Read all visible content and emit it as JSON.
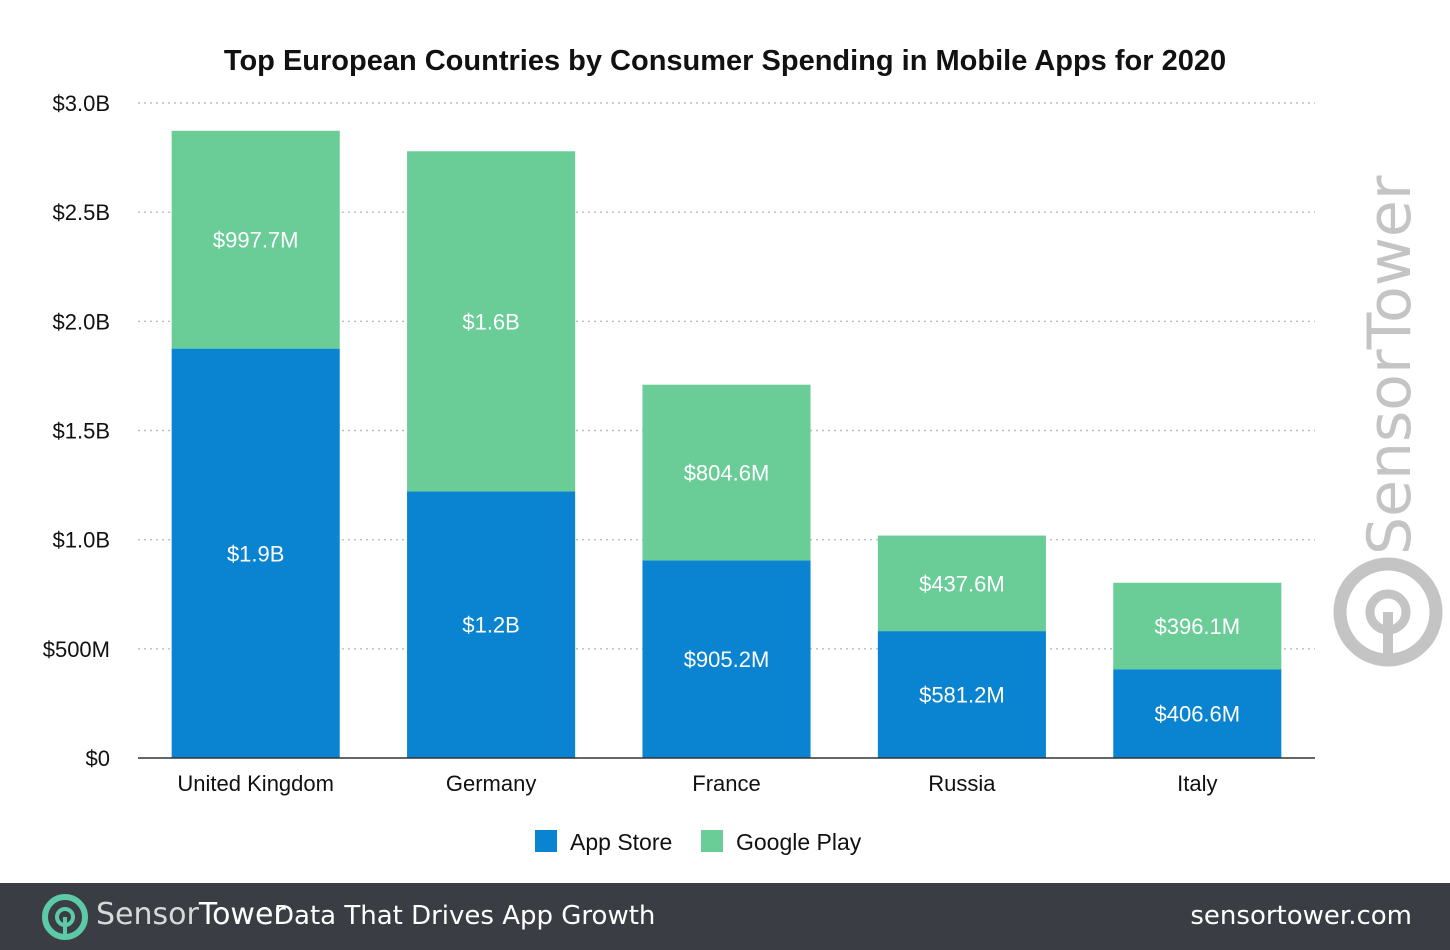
{
  "chart_data": {
    "type": "bar",
    "stacked": true,
    "title": "Top European Countries by Consumer Spending in Mobile Apps for 2020",
    "xlabel": "",
    "ylabel": "",
    "categories": [
      "United Kingdom",
      "Germany",
      "France",
      "Russia",
      "Italy"
    ],
    "series": [
      {
        "name": "App Store",
        "color": "#0a84d0",
        "values": [
          1.875,
          1.221,
          0.9052,
          0.5812,
          0.4066
        ],
        "labels": [
          "$1.9B",
          "$1.2B",
          "$905.2M",
          "$581.2M",
          "$406.6M"
        ]
      },
      {
        "name": "Google Play",
        "color": "#6acd98",
        "values": [
          0.9977,
          1.558,
          0.8046,
          0.4376,
          0.3961
        ],
        "labels": [
          "$997.7M",
          "$1.6B",
          "$804.6M",
          "$437.6M",
          "$396.1M"
        ]
      }
    ],
    "yticks": [
      0,
      0.5,
      1.0,
      1.5,
      2.0,
      2.5,
      3.0
    ],
    "ytick_labels": [
      "$0",
      "$500M",
      "$1.0B",
      "$1.5B",
      "$2.0B",
      "$2.5B",
      "$3.0B"
    ],
    "ylim": [
      0,
      3.0
    ],
    "grid": true,
    "legend_position": "bottom"
  },
  "watermark": "SensorTower",
  "footer": {
    "brand_part1": "Sensor",
    "brand_part2": "Tower",
    "tagline": "Data That Drives App Growth",
    "website": "sensortower.com"
  }
}
